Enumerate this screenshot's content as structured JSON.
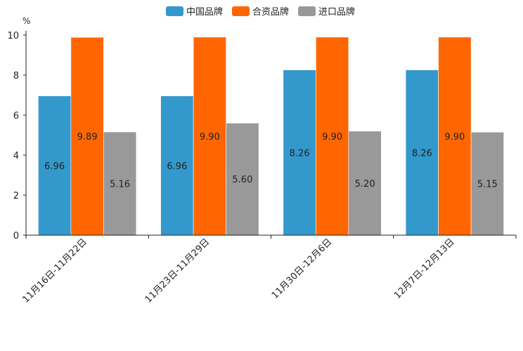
{
  "chart_data": {
    "type": "bar",
    "title": "",
    "xlabel": "",
    "ylabel": "%",
    "ylim": [
      0,
      10
    ],
    "yticks": [
      0,
      2,
      4,
      6,
      8,
      10
    ],
    "grid": false,
    "legend_position": "top-center",
    "categories": [
      "11月16日-11月22日",
      "11月23日-11月29日",
      "11月30日-12月6日",
      "12月7日-12月13日"
    ],
    "series": [
      {
        "name": "中国品牌",
        "color": "#3399cc",
        "values": [
          6.96,
          6.96,
          8.26,
          8.26
        ],
        "labels": [
          "6.96",
          "6.96",
          "8.26",
          "8.26"
        ]
      },
      {
        "name": "合资品牌",
        "color": "#ff6600",
        "values": [
          9.89,
          9.9,
          9.9,
          9.9
        ],
        "labels": [
          "9.89",
          "9.90",
          "9.90",
          "9.90"
        ]
      },
      {
        "name": "进口品牌",
        "color": "#999999",
        "values": [
          5.16,
          5.6,
          5.2,
          5.15
        ],
        "labels": [
          "5.16",
          "5.60",
          "5.20",
          "5.15"
        ]
      }
    ]
  }
}
